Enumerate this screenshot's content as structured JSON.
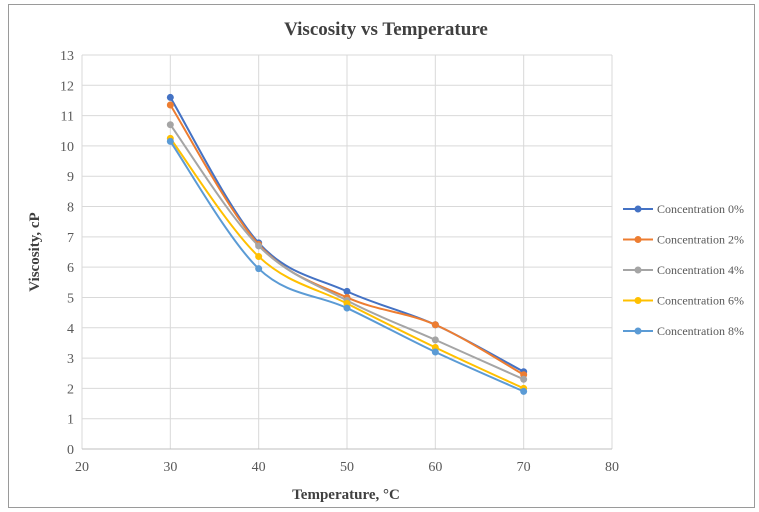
{
  "chart_data": {
    "type": "line",
    "title": "Viscosity vs Temperature",
    "xlabel": "Temperature, °C",
    "ylabel": "Viscosity, cP",
    "xlim": [
      20,
      80
    ],
    "ylim": [
      0,
      13
    ],
    "xticks": [
      20,
      30,
      40,
      50,
      60,
      70,
      80
    ],
    "yticks": [
      0,
      1,
      2,
      3,
      4,
      5,
      6,
      7,
      8,
      9,
      10,
      11,
      12,
      13
    ],
    "grid": true,
    "legend_position": "right",
    "x": [
      30,
      40,
      50,
      60,
      70
    ],
    "series": [
      {
        "name": "Concentration 0%",
        "color": "#4472C4",
        "values": [
          11.6,
          6.8,
          5.2,
          4.1,
          2.55
        ]
      },
      {
        "name": "Concentration 2%",
        "color": "#ED7D31",
        "values": [
          11.35,
          6.75,
          5.0,
          4.1,
          2.45
        ]
      },
      {
        "name": "Concentration 4%",
        "color": "#A5A5A5",
        "values": [
          10.7,
          6.7,
          4.9,
          3.6,
          2.3
        ]
      },
      {
        "name": "Concentration 6%",
        "color": "#FFC000",
        "values": [
          10.25,
          6.35,
          4.8,
          3.35,
          2.0
        ]
      },
      {
        "name": "Concentration 8%",
        "color": "#5B9BD5",
        "values": [
          10.15,
          5.95,
          4.65,
          3.2,
          1.9
        ]
      }
    ]
  }
}
